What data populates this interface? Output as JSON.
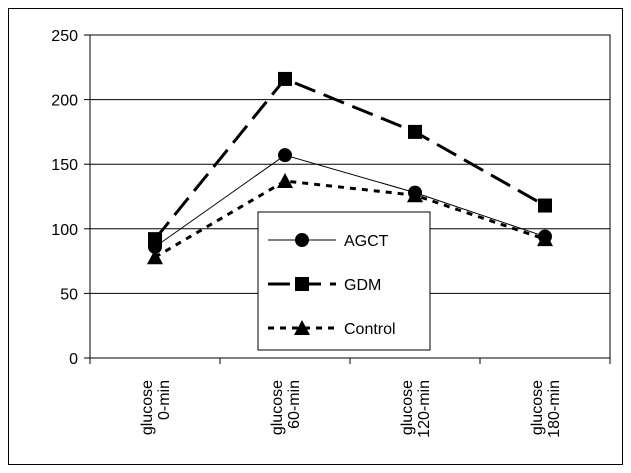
{
  "chart_data": {
    "type": "line",
    "categories": [
      "glucose 0-min",
      "glucose 60-min",
      "glucose 120-min",
      "glucose 180-min"
    ],
    "category_lines": [
      [
        "glucose",
        "0-min"
      ],
      [
        "glucose",
        "60-min"
      ],
      [
        "glucose",
        "120-min"
      ],
      [
        "glucose",
        "180-min"
      ]
    ],
    "series": [
      {
        "name": "AGCT",
        "values": [
          86,
          157,
          128,
          94
        ],
        "marker": "circle",
        "line_style": "solid-thin"
      },
      {
        "name": "GDM",
        "values": [
          92,
          216,
          175,
          118
        ],
        "marker": "square",
        "line_style": "long-dash"
      },
      {
        "name": "Control",
        "values": [
          78,
          137,
          126,
          92
        ],
        "marker": "triangle",
        "line_style": "short-dash"
      }
    ],
    "ylim": [
      0,
      250
    ],
    "yticks": [
      0,
      50,
      100,
      150,
      200,
      250
    ],
    "ytick_labels": [
      "0",
      "50",
      "100",
      "150",
      "200",
      "250"
    ],
    "grid": "horizontal",
    "legend_position": "center-bottom-inside",
    "title": "",
    "xlabel": "",
    "ylabel": "",
    "colors": {
      "line": "#000000",
      "grid": "#000000",
      "background": "#ffffff"
    }
  }
}
